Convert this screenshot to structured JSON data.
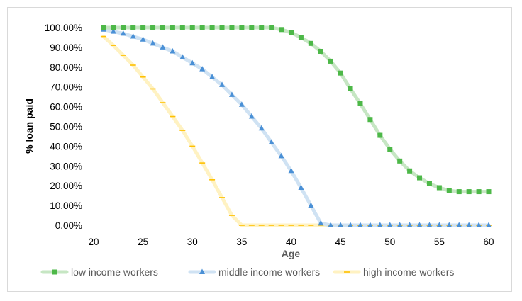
{
  "chart_data": {
    "type": "line",
    "title": "",
    "xlabel": "Age",
    "ylabel": "% loan paid",
    "xlim": [
      20,
      60
    ],
    "ylim": [
      0,
      100
    ],
    "xticks": [
      20,
      25,
      30,
      35,
      40,
      45,
      50,
      55,
      60
    ],
    "xtick_labels": [
      "20",
      "25",
      "30",
      "35",
      "40",
      "45",
      "50",
      "55",
      "60"
    ],
    "yticks": [
      0,
      10,
      20,
      30,
      40,
      50,
      60,
      70,
      80,
      90,
      100
    ],
    "ytick_labels": [
      "0.00%",
      "10.00%",
      "20.00%",
      "30.00%",
      "40.00%",
      "50.00%",
      "60.00%",
      "70.00%",
      "80.00%",
      "90.00%",
      "100.00%"
    ],
    "grid": false,
    "legend_position": "bottom",
    "x": [
      21,
      22,
      23,
      24,
      25,
      26,
      27,
      28,
      29,
      30,
      31,
      32,
      33,
      34,
      35,
      36,
      37,
      38,
      39,
      40,
      41,
      42,
      43,
      44,
      45,
      46,
      47,
      48,
      49,
      50,
      51,
      52,
      53,
      54,
      55,
      56,
      57,
      58,
      59,
      60
    ],
    "series": [
      {
        "name": "low income workers",
        "color": "#4db848",
        "line_color": "#c6e6c3",
        "marker": "square",
        "values": [
          100,
          100,
          100,
          100,
          100,
          100,
          100,
          100,
          100,
          100,
          100,
          100,
          100,
          100,
          100,
          100,
          100,
          100,
          99,
          97.5,
          95,
          92,
          88,
          83,
          77,
          69,
          61.5,
          53.5,
          45.5,
          38.5,
          32.5,
          27.5,
          24,
          21,
          19,
          17.5,
          17,
          17,
          17,
          17
        ]
      },
      {
        "name": "middle income workers",
        "color": "#4a90d6",
        "line_color": "#cfe2f3",
        "marker": "triangle",
        "values": [
          99,
          98,
          97,
          95.5,
          94,
          92,
          90,
          88,
          85,
          82,
          79,
          75,
          71,
          66,
          61,
          55,
          49,
          42,
          35,
          27.5,
          19,
          10,
          1,
          0,
          0,
          0,
          0,
          0,
          0,
          0,
          0,
          0,
          0,
          0,
          0,
          0,
          0,
          0,
          0,
          0
        ]
      },
      {
        "name": "high income workers",
        "color": "#ffc000",
        "line_color": "#fff2c2",
        "marker": "dash",
        "values": [
          95.5,
          91,
          86,
          81,
          75,
          69,
          62,
          55,
          48,
          40,
          31.5,
          23,
          14,
          5,
          0,
          0,
          0,
          0,
          0,
          0,
          0,
          0,
          0,
          0,
          0,
          0,
          0,
          0,
          0,
          0,
          0,
          0,
          0,
          0,
          0,
          0,
          0,
          0,
          0,
          0
        ]
      }
    ]
  }
}
